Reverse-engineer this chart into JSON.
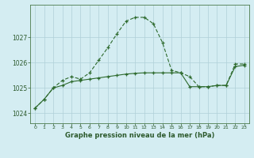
{
  "title": "Graphe pression niveau de la mer (hPa)",
  "bg_color": "#d4edf2",
  "line_color": "#2d6a2d",
  "grid_color": "#b0d0d8",
  "axis_color": "#4a7a4a",
  "tick_color": "#2d5a2d",
  "x_labels": [
    "0",
    "1",
    "2",
    "3",
    "4",
    "5",
    "6",
    "7",
    "8",
    "9",
    "10",
    "11",
    "12",
    "13",
    "14",
    "15",
    "16",
    "17",
    "18",
    "19",
    "20",
    "21",
    "22",
    "23"
  ],
  "ylim": [
    1023.6,
    1028.3
  ],
  "yticks": [
    1024,
    1025,
    1026,
    1027
  ],
  "series1_x": [
    0,
    1,
    2,
    3,
    4,
    5,
    6,
    7,
    8,
    9,
    10,
    11,
    12,
    13,
    14,
    15,
    16,
    17,
    18,
    19,
    20,
    21,
    22,
    23
  ],
  "series1_y": [
    1024.2,
    1024.55,
    1025.0,
    1025.3,
    1025.45,
    1025.35,
    1025.6,
    1026.1,
    1026.6,
    1027.15,
    1027.65,
    1027.8,
    1027.8,
    1027.55,
    1026.8,
    1025.7,
    1025.6,
    1025.45,
    1025.05,
    1025.05,
    1025.1,
    1025.1,
    1025.95,
    1025.95
  ],
  "series2_x": [
    0,
    1,
    2,
    3,
    4,
    5,
    6,
    7,
    8,
    9,
    10,
    11,
    12,
    13,
    14,
    15,
    16,
    17,
    18,
    19,
    20,
    21,
    22,
    23
  ],
  "series2_y": [
    1024.2,
    1024.55,
    1025.0,
    1025.1,
    1025.25,
    1025.3,
    1025.35,
    1025.4,
    1025.45,
    1025.5,
    1025.55,
    1025.58,
    1025.6,
    1025.6,
    1025.6,
    1025.6,
    1025.6,
    1025.05,
    1025.05,
    1025.05,
    1025.1,
    1025.1,
    1025.85,
    1025.9
  ]
}
